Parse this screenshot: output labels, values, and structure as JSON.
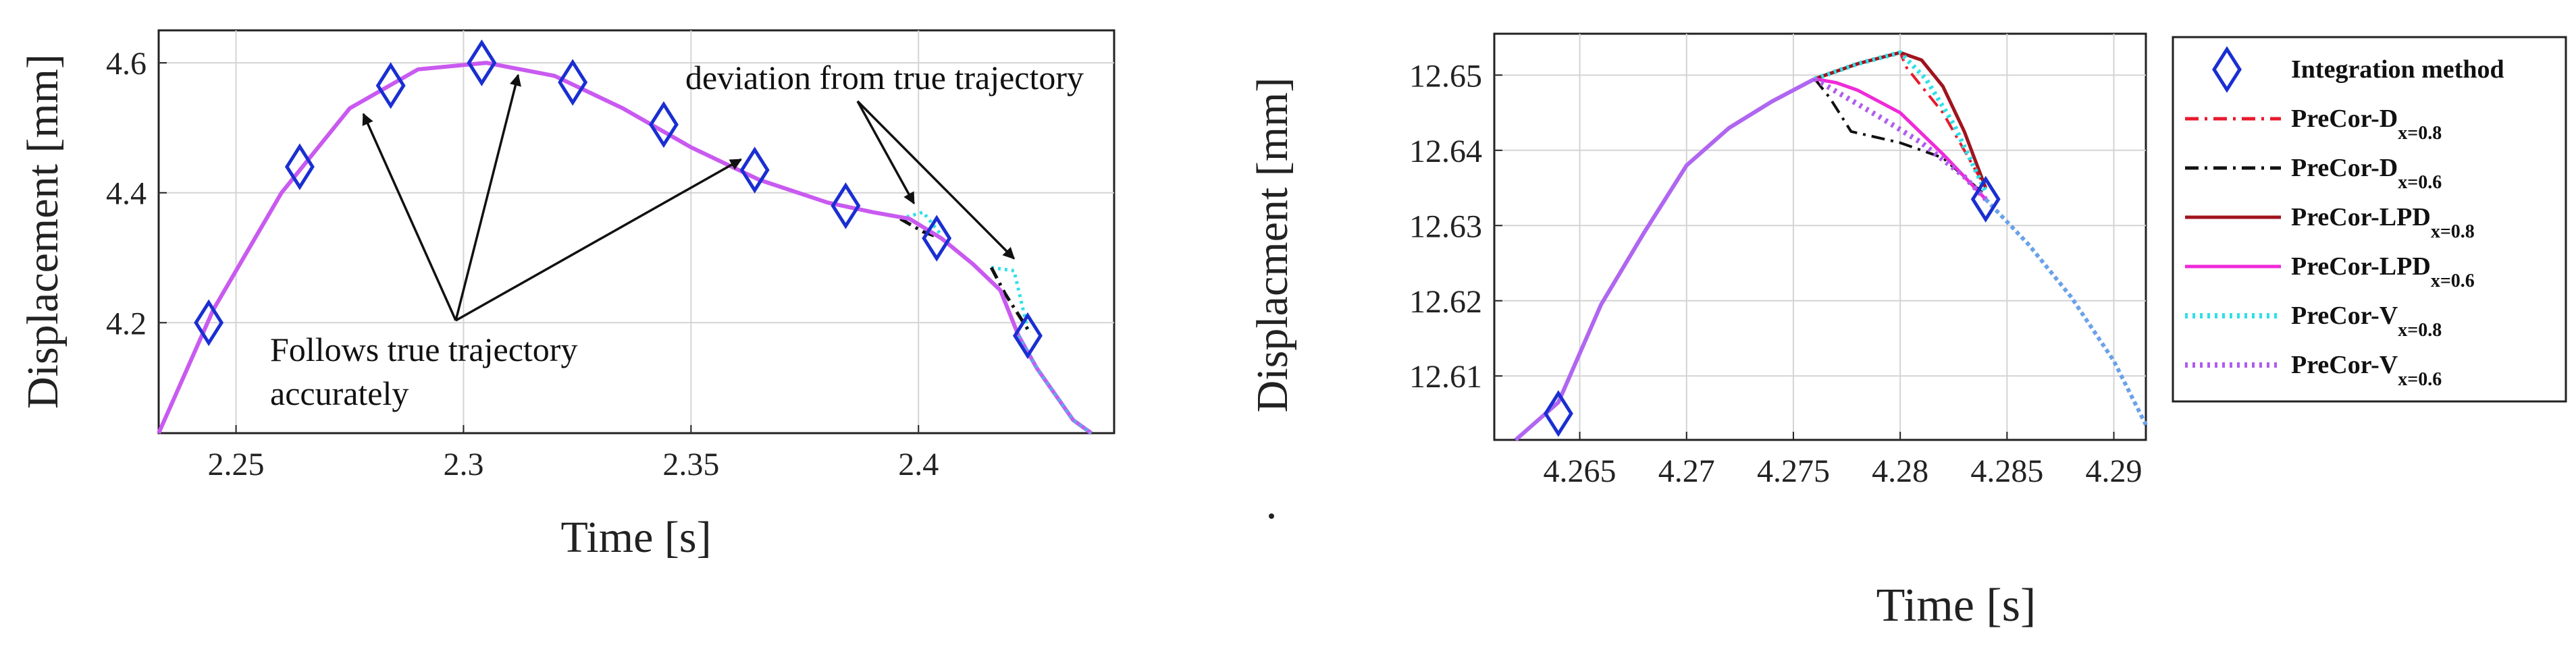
{
  "chart_data": [
    {
      "type": "line",
      "xlabel": "Time [s]",
      "ylabel": "Displacement [mm]",
      "xlim": [
        2.233,
        2.443
      ],
      "ylim": [
        4.03,
        4.65
      ],
      "x_ticks": [
        "2.25",
        "2.3",
        "2.35",
        "2.4"
      ],
      "y_ticks": [
        "4.2",
        "4.4",
        "4.6"
      ],
      "grid": true,
      "true_curve": {
        "x": [
          2.233,
          2.245,
          2.26,
          2.275,
          2.29,
          2.305,
          2.32,
          2.335,
          2.35,
          2.365,
          2.38,
          2.39,
          2.398,
          2.405,
          2.412,
          2.418,
          2.422,
          2.426,
          2.43,
          2.434,
          2.438
        ],
        "y": [
          4.03,
          4.22,
          4.4,
          4.53,
          4.59,
          4.6,
          4.58,
          4.53,
          4.47,
          4.42,
          4.385,
          4.37,
          4.36,
          4.33,
          4.29,
          4.25,
          4.18,
          4.13,
          4.09,
          4.05,
          4.03
        ]
      },
      "markers": {
        "x": [
          2.244,
          2.264,
          2.284,
          2.304,
          2.324,
          2.344,
          2.364,
          2.384,
          2.404,
          2.424
        ],
        "y": [
          4.2,
          4.44,
          4.565,
          4.6,
          4.57,
          4.505,
          4.435,
          4.38,
          4.33,
          4.18
        ]
      },
      "deviations": [
        {
          "name": "cyan",
          "x": [
            2.396,
            2.401,
            2.405
          ],
          "y": [
            4.36,
            4.37,
            4.335
          ]
        },
        {
          "name": "cyan",
          "x": [
            2.416,
            2.421,
            2.424
          ],
          "y": [
            4.285,
            4.28,
            4.19
          ]
        },
        {
          "name": "black",
          "x": [
            2.396,
            2.401,
            2.405
          ],
          "y": [
            4.36,
            4.34,
            4.33
          ]
        },
        {
          "name": "black",
          "x": [
            2.416,
            2.419,
            2.424
          ],
          "y": [
            4.285,
            4.245,
            4.19
          ]
        }
      ],
      "annotations": [
        {
          "text": "deviation from true trajectory",
          "arrows_to": [
            [
              2.399,
              4.365
            ],
            [
              2.421,
              4.28
            ]
          ]
        },
        {
          "text": "Follows true trajectory",
          "text2": "accurately",
          "arrows_to": [
            [
              2.278,
              4.54
            ],
            [
              2.312,
              4.6
            ],
            [
              2.361,
              4.47
            ]
          ]
        }
      ]
    },
    {
      "type": "line",
      "xlabel": "Time [s]",
      "ylabel": "Displacment [mm]",
      "xlim": [
        4.261,
        4.2915
      ],
      "ylim": [
        12.6015,
        12.6555
      ],
      "x_ticks": [
        "4.265",
        "4.27",
        "4.275",
        "4.28",
        "4.285",
        "4.29"
      ],
      "y_ticks": [
        "12.61",
        "12.62",
        "12.63",
        "12.64",
        "12.65"
      ],
      "grid": true,
      "legend": [
        {
          "label": "Integration method",
          "sub": "",
          "color": "#1a2fd1",
          "style": "marker"
        },
        {
          "label": "PreCor-D",
          "sub": "x=0.8",
          "color": "#e8192c",
          "style": "dashdot"
        },
        {
          "label": "PreCor-D",
          "sub": "x=0.6",
          "color": "#111111",
          "style": "dashdot"
        },
        {
          "label": "PreCor-LPD",
          "sub": "x=0.8",
          "color": "#a0141e",
          "style": "solid"
        },
        {
          "label": "PreCor-LPD",
          "sub": "x=0.6",
          "color": "#ef2ad8",
          "style": "solid"
        },
        {
          "label": "PreCor-V",
          "sub": "x=0.8",
          "color": "#2fe0e8",
          "style": "dotted"
        },
        {
          "label": "PreCor-V",
          "sub": "x=0.6",
          "color": "#b05cf0",
          "style": "dotted"
        }
      ],
      "markers": {
        "x": [
          4.264,
          4.284
        ],
        "y": [
          12.605,
          12.6335
        ]
      },
      "series": [
        {
          "name": "trunk",
          "color": "#b066f0",
          "x": [
            4.262,
            4.264,
            4.266,
            4.268,
            4.27,
            4.272,
            4.274,
            4.276
          ],
          "y": [
            12.6015,
            12.6065,
            12.6195,
            12.629,
            12.638,
            12.643,
            12.6465,
            12.6495
          ]
        },
        {
          "name": "PreCor-D x=0.8",
          "color": "#e8192c",
          "x": [
            4.276,
            4.278,
            4.28,
            4.2803,
            4.282,
            4.284
          ],
          "y": [
            12.6495,
            12.6515,
            12.653,
            12.651,
            12.645,
            12.635
          ]
        },
        {
          "name": "PreCor-D x=0.6",
          "color": "#111111",
          "x": [
            4.276,
            4.2767,
            4.2777,
            4.28,
            4.282,
            4.284
          ],
          "y": [
            12.6495,
            12.647,
            12.6425,
            12.641,
            12.639,
            12.634
          ]
        },
        {
          "name": "PreCor-LPD x=0.8",
          "color": "#a0141e",
          "x": [
            4.276,
            4.278,
            4.28,
            4.281,
            4.282,
            4.283,
            4.284
          ],
          "y": [
            12.6495,
            12.6515,
            12.653,
            12.652,
            12.6485,
            12.6425,
            12.635
          ]
        },
        {
          "name": "PreCor-LPD x=0.6",
          "color": "#ef2ad8",
          "x": [
            4.276,
            4.277,
            4.278,
            4.28,
            4.282,
            4.284
          ],
          "y": [
            12.6495,
            12.649,
            12.648,
            12.645,
            12.6395,
            12.6335
          ]
        },
        {
          "name": "PreCor-V x=0.8",
          "color": "#2fe0e8",
          "x": [
            4.276,
            4.278,
            4.28,
            4.2812,
            4.2825,
            4.284
          ],
          "y": [
            12.6495,
            12.6515,
            12.653,
            12.6495,
            12.6435,
            12.6345
          ]
        },
        {
          "name": "PreCor-V x=0.6",
          "color": "#b05cf0",
          "x": [
            4.276,
            4.2775,
            4.279,
            4.281,
            4.283,
            4.284
          ],
          "y": [
            12.6495,
            12.647,
            12.6445,
            12.641,
            12.6365,
            12.6335
          ]
        },
        {
          "name": "decline",
          "color": "#6aa2e8",
          "x": [
            4.284,
            4.286,
            4.288,
            4.29,
            4.2915
          ],
          "y": [
            12.6335,
            12.6275,
            12.6205,
            12.612,
            12.6035
          ]
        }
      ]
    }
  ]
}
